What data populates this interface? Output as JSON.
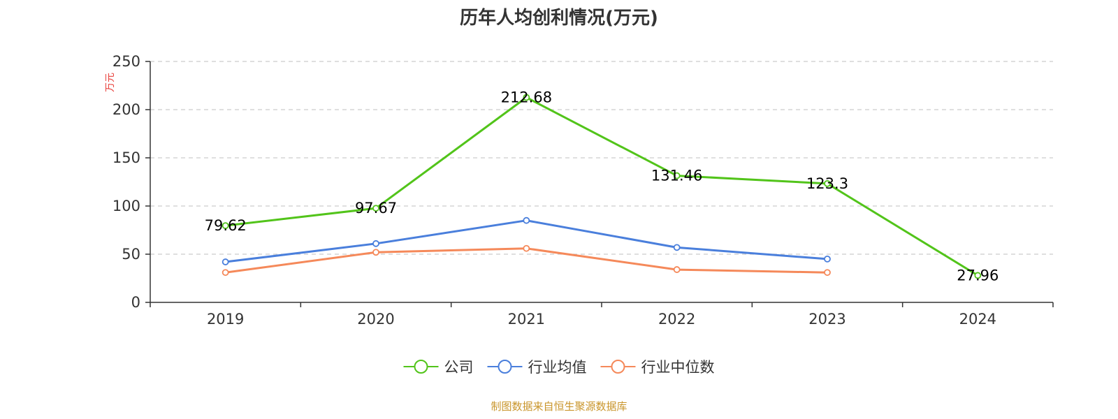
{
  "chart_data": {
    "type": "line",
    "title": "历年人均创利情况(万元)",
    "ylabel": "万元",
    "xlabel": "",
    "categories": [
      "2019",
      "2020",
      "2021",
      "2022",
      "2023",
      "2024"
    ],
    "ylim": [
      0,
      250
    ],
    "yticks": [
      0,
      50,
      100,
      150,
      200,
      250
    ],
    "grid": true,
    "legend_position": "bottom",
    "series": [
      {
        "name": "公司",
        "color": "#52c41a",
        "values": [
          79.62,
          97.67,
          212.68,
          131.46,
          123.3,
          27.96
        ],
        "data_labels": [
          "79.62",
          "97.67",
          "212.68",
          "131.46",
          "123.3",
          "27.96"
        ]
      },
      {
        "name": "行业均值",
        "color": "#4a7fdc",
        "values": [
          42,
          61,
          85,
          57,
          45,
          null
        ]
      },
      {
        "name": "行业中位数",
        "color": "#f5895a",
        "values": [
          31,
          52,
          56,
          34,
          31,
          null
        ]
      }
    ]
  },
  "source_note": "制图数据来自恒生聚源数据库",
  "colors": {
    "ylabel": "#e8413c",
    "source": "#c9952b",
    "axis": "#333333",
    "grid": "#cccccc"
  }
}
